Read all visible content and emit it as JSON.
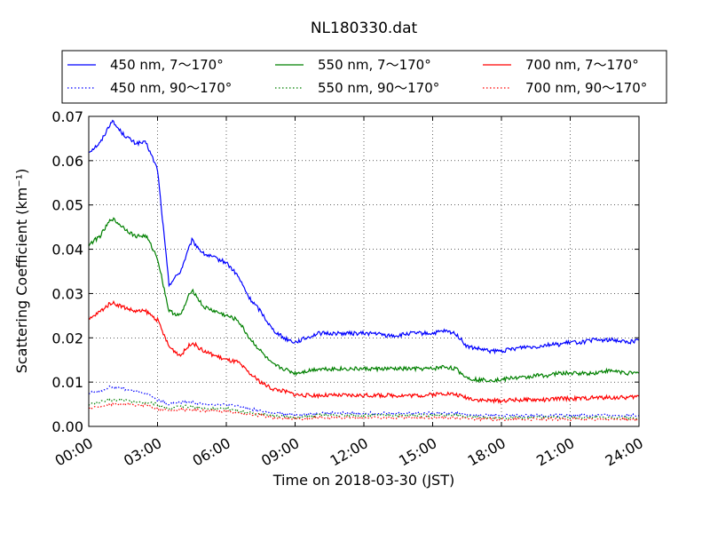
{
  "chart_data": {
    "type": "line",
    "title": "NL180330.dat",
    "xlabel": "Time on 2018-03-30 (JST)",
    "ylabel": "Scattering Coefficient (km⁻¹)",
    "xlim": [
      "00:00",
      "24:00"
    ],
    "ylim": [
      0,
      0.07
    ],
    "x_ticks": [
      "00:00",
      "03:00",
      "06:00",
      "09:00",
      "12:00",
      "15:00",
      "18:00",
      "21:00",
      "24:00"
    ],
    "y_ticks": [
      "0.00",
      "0.01",
      "0.02",
      "0.03",
      "0.04",
      "0.05",
      "0.06",
      "0.07"
    ],
    "grid": true,
    "legend_position": "top",
    "x_hours": [
      0,
      0.5,
      1,
      1.5,
      2,
      2.5,
      3,
      3.5,
      4,
      4.5,
      5,
      5.5,
      6,
      6.5,
      7,
      7.5,
      8,
      8.5,
      9,
      9.5,
      10,
      10.5,
      11,
      11.5,
      12,
      12.5,
      13,
      13.5,
      14,
      14.5,
      15,
      15.5,
      16,
      16.5,
      17,
      17.5,
      18,
      18.5,
      19,
      19.5,
      20,
      20.5,
      21,
      21.5,
      22,
      22.5,
      23,
      23.5,
      24
    ],
    "series": [
      {
        "name": "450 nm, 7～170°",
        "color": "#0000ff",
        "style": "solid",
        "values": [
          0.062,
          0.064,
          0.069,
          0.066,
          0.064,
          0.064,
          0.058,
          0.032,
          0.035,
          0.042,
          0.039,
          0.038,
          0.037,
          0.034,
          0.029,
          0.026,
          0.022,
          0.02,
          0.019,
          0.02,
          0.021,
          0.021,
          0.021,
          0.021,
          0.021,
          0.021,
          0.0205,
          0.0205,
          0.021,
          0.021,
          0.021,
          0.0215,
          0.021,
          0.018,
          0.0175,
          0.017,
          0.017,
          0.0175,
          0.018,
          0.018,
          0.0185,
          0.0185,
          0.019,
          0.019,
          0.0195,
          0.0195,
          0.0195,
          0.019,
          0.0195
        ]
      },
      {
        "name": "450 nm, 90～170°",
        "color": "#0000ff",
        "style": "dotted",
        "values": [
          0.0075,
          0.008,
          0.009,
          0.0085,
          0.008,
          0.0075,
          0.006,
          0.005,
          0.0055,
          0.0055,
          0.005,
          0.005,
          0.0048,
          0.0045,
          0.004,
          0.0035,
          0.003,
          0.0028,
          0.0027,
          0.0028,
          0.003,
          0.003,
          0.003,
          0.003,
          0.003,
          0.003,
          0.003,
          0.003,
          0.003,
          0.003,
          0.003,
          0.003,
          0.003,
          0.0027,
          0.0025,
          0.0025,
          0.0025,
          0.0025,
          0.0025,
          0.0025,
          0.0025,
          0.0025,
          0.0025,
          0.0025,
          0.0025,
          0.0025,
          0.0025,
          0.0025,
          0.0025
        ]
      },
      {
        "name": "550 nm, 7～170°",
        "color": "#008000",
        "style": "solid",
        "values": [
          0.041,
          0.043,
          0.047,
          0.045,
          0.043,
          0.043,
          0.038,
          0.026,
          0.025,
          0.031,
          0.027,
          0.026,
          0.025,
          0.024,
          0.02,
          0.017,
          0.014,
          0.013,
          0.012,
          0.0125,
          0.013,
          0.013,
          0.013,
          0.013,
          0.013,
          0.013,
          0.013,
          0.013,
          0.013,
          0.013,
          0.013,
          0.0135,
          0.013,
          0.011,
          0.0105,
          0.0105,
          0.0105,
          0.011,
          0.011,
          0.0115,
          0.0115,
          0.012,
          0.012,
          0.012,
          0.012,
          0.0125,
          0.0125,
          0.012,
          0.012
        ]
      },
      {
        "name": "550 nm, 90～170°",
        "color": "#008000",
        "style": "dotted",
        "values": [
          0.005,
          0.0055,
          0.006,
          0.006,
          0.0055,
          0.0055,
          0.005,
          0.004,
          0.0045,
          0.0045,
          0.004,
          0.004,
          0.004,
          0.0035,
          0.003,
          0.0028,
          0.0025,
          0.0022,
          0.002,
          0.0022,
          0.0025,
          0.0025,
          0.0025,
          0.0025,
          0.0025,
          0.0025,
          0.0025,
          0.0025,
          0.0025,
          0.0025,
          0.0025,
          0.0025,
          0.0025,
          0.0022,
          0.002,
          0.002,
          0.002,
          0.002,
          0.002,
          0.002,
          0.002,
          0.002,
          0.002,
          0.002,
          0.002,
          0.002,
          0.002,
          0.002,
          0.002
        ]
      },
      {
        "name": "700 nm, 7～170°",
        "color": "#ff0000",
        "style": "solid",
        "values": [
          0.024,
          0.026,
          0.028,
          0.027,
          0.026,
          0.026,
          0.024,
          0.018,
          0.016,
          0.019,
          0.017,
          0.016,
          0.015,
          0.0145,
          0.012,
          0.01,
          0.0085,
          0.008,
          0.0072,
          0.007,
          0.007,
          0.007,
          0.007,
          0.007,
          0.007,
          0.007,
          0.007,
          0.007,
          0.007,
          0.007,
          0.0072,
          0.0075,
          0.0072,
          0.0065,
          0.006,
          0.0058,
          0.0058,
          0.006,
          0.006,
          0.006,
          0.006,
          0.0063,
          0.0063,
          0.0063,
          0.0065,
          0.0065,
          0.0065,
          0.0065,
          0.0068
        ]
      },
      {
        "name": "700 nm, 90～170°",
        "color": "#ff0000",
        "style": "dotted",
        "values": [
          0.004,
          0.0045,
          0.005,
          0.005,
          0.0048,
          0.0048,
          0.004,
          0.0035,
          0.0038,
          0.0038,
          0.0035,
          0.0035,
          0.0033,
          0.003,
          0.0027,
          0.0025,
          0.002,
          0.0018,
          0.0017,
          0.0018,
          0.002,
          0.002,
          0.002,
          0.002,
          0.002,
          0.002,
          0.002,
          0.002,
          0.002,
          0.002,
          0.002,
          0.002,
          0.002,
          0.0018,
          0.0017,
          0.0016,
          0.0016,
          0.0016,
          0.0016,
          0.0016,
          0.0016,
          0.0016,
          0.0016,
          0.0016,
          0.0016,
          0.0016,
          0.0016,
          0.0016,
          0.0016
        ]
      }
    ]
  }
}
